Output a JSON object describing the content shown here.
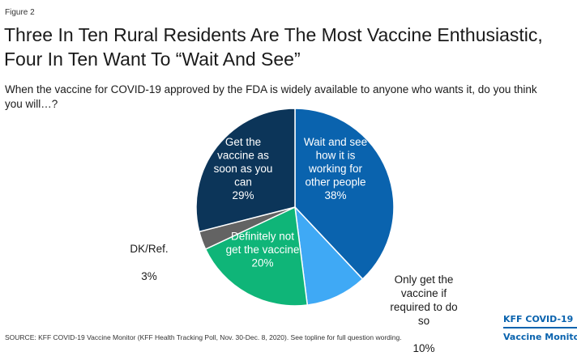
{
  "figure_label": "Figure 2",
  "title": "Three In Ten Rural Residents Are The Most Vaccine Enthusiastic,\nFour In Ten Want To “Wait And See”",
  "subtitle": "When the vaccine for COVID-19 approved by the FDA is widely available to anyone who wants it, do you think\nyou will…?",
  "source": "SOURCE: KFF COVID-19 Vaccine Monitor (KFF Health Tracking Poll, Nov. 30-Dec. 8, 2020). See topline for full question wording.",
  "brand": {
    "line1": "KFF COVID-19",
    "line2": "Vaccine Monitor"
  },
  "chart_data": {
    "type": "pie",
    "slices": [
      {
        "label": "Wait and see how it is working for other people",
        "display_label": "Wait and see\nhow it is\nworking for\nother people",
        "value": 38,
        "value_label": "38%",
        "color": "#0a63ae",
        "label_inside": true,
        "text_color": "#ffffff"
      },
      {
        "label": "Only get the vaccine if required to do so",
        "display_label": "Only get the\nvaccine if\nrequired to do\nso",
        "value": 10,
        "value_label": "10%",
        "color": "#3fa9f5",
        "label_inside": false,
        "text_color": "#1a1a1a"
      },
      {
        "label": "Definitely not get the vaccine",
        "display_label": "Definitely not\nget the vaccine",
        "value": 20,
        "value_label": "20%",
        "color": "#0fb578",
        "label_inside": true,
        "text_color": "#ffffff"
      },
      {
        "label": "DK/Ref.",
        "display_label": "DK/Ref.",
        "value": 3,
        "value_label": "3%",
        "color": "#636363",
        "label_inside": false,
        "text_color": "#1a1a1a"
      },
      {
        "label": "Get the vaccine as soon as you can",
        "display_label": "Get the\nvaccine as\nsoon as you\ncan",
        "value": 29,
        "value_label": "29%",
        "color": "#0c3559",
        "label_inside": true,
        "text_color": "#ffffff"
      }
    ],
    "start": "12 o'clock",
    "direction": "clockwise"
  }
}
